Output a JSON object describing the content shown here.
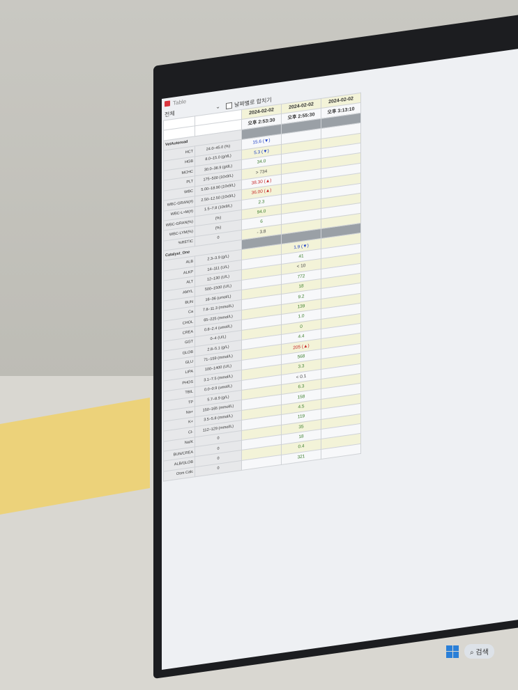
{
  "window": {
    "title": "Table"
  },
  "toolbar": {
    "filter_value": "전체",
    "merge_by_date_label": "날짜별로 합치기",
    "merge_by_date_checked": false
  },
  "columns": [
    {
      "date": "2024-02-02",
      "time": "오후 2:53:30"
    },
    {
      "date": "2024-02-02",
      "time": "오후 2:55:30"
    },
    {
      "date": "2024-02-02",
      "time": "오후 3:13:10"
    }
  ],
  "groups": [
    {
      "name": "VetAutoread",
      "column": 0,
      "rows": [
        {
          "test": "HCT",
          "range": "24.0–45.0 (%)",
          "value": "15.6 (▼)",
          "flag": "low"
        },
        {
          "test": "HGB",
          "range": "8.0–15.0 (g/dL)",
          "value": "5.3 (▼)",
          "flag": "low"
        },
        {
          "test": "MCHC",
          "range": "30.0–36.9 (g/dL)",
          "value": "34.0",
          "flag": "ok"
        },
        {
          "test": "PLT",
          "range": "175–500 (10x9/L)",
          "value": "> 734",
          "flag": "plain"
        },
        {
          "test": "WBC",
          "range": "5.00–18.90 (10x9/L)",
          "value": "38.30 (▲)",
          "flag": "high"
        },
        {
          "test": "WBC-GRAN(#)",
          "range": "2.50–12.50 (10x9/L)",
          "value": "36.00 (▲)",
          "flag": "high"
        },
        {
          "test": "WBC-L+M(#)",
          "range": "1.5–7.8 (10x9/L)",
          "value": "2.3",
          "flag": "ok"
        },
        {
          "test": "WBC-GRAN(%)",
          "range": "(%)",
          "value": "94.0",
          "flag": "ok"
        },
        {
          "test": "WBC-LYM(%)",
          "range": "(%)",
          "value": "6",
          "flag": "ok"
        },
        {
          "test": "%RETIC",
          "range": "0",
          "value": "- 3.8",
          "flag": "plain"
        }
      ]
    },
    {
      "name": "Catalyst_One",
      "column": 1,
      "rows": [
        {
          "test": "ALB",
          "range": "2.3–3.9 (g/L)",
          "value": "1.9 (▼)",
          "flag": "low"
        },
        {
          "test": "ALKP",
          "range": "14–111 (U/L)",
          "value": "41",
          "flag": "ok"
        },
        {
          "test": "ALT",
          "range": "12–130 (U/L)",
          "value": "< 10",
          "flag": "plain"
        },
        {
          "test": "AMYL",
          "range": "500–1500 (U/L)",
          "value": "772",
          "flag": "ok"
        },
        {
          "test": "BUN",
          "range": "16–36 (umol/L)",
          "value": "18",
          "flag": "ok"
        },
        {
          "test": "Ca",
          "range": "7.8–11.3 (mmol/L)",
          "value": "9.2",
          "flag": "ok"
        },
        {
          "test": "CHOL",
          "range": "65–225 (mmol/L)",
          "value": "139",
          "flag": "ok"
        },
        {
          "test": "CREA",
          "range": "0.8–2.4 (umol/L)",
          "value": "1.0",
          "flag": "ok"
        },
        {
          "test": "GGT",
          "range": "0–4 (U/L)",
          "value": "0",
          "flag": "ok"
        },
        {
          "test": "GLOB",
          "range": "2.8–5.1 (g/L)",
          "value": "4.4",
          "flag": "ok"
        },
        {
          "test": "GLU",
          "range": "71–159 (mmol/L)",
          "value": "205 (▲)",
          "flag": "high"
        },
        {
          "test": "LIPA",
          "range": "100–1400 (U/L)",
          "value": "568",
          "flag": "ok"
        },
        {
          "test": "PHOS",
          "range": "3.1–7.5 (mmol/L)",
          "value": "3.3",
          "flag": "ok"
        },
        {
          "test": "TBIL",
          "range": "0.0–0.9 (umol/L)",
          "value": "< 0.1",
          "flag": "plain"
        },
        {
          "test": "TP",
          "range": "5.7–8.9 (g/L)",
          "value": "6.3",
          "flag": "ok"
        },
        {
          "test": "Na+",
          "range": "150–165 (mmol/L)",
          "value": "158",
          "flag": "ok"
        },
        {
          "test": "K+",
          "range": "3.5–5.8 (mmol/L)",
          "value": "4.5",
          "flag": "ok"
        },
        {
          "test": "Cl-",
          "range": "112–129 (mmol/L)",
          "value": "119",
          "flag": "ok"
        },
        {
          "test": "Na/K",
          "range": "0",
          "value": "35",
          "flag": "ok"
        },
        {
          "test": "BUN/CREA",
          "range": "0",
          "value": "18",
          "flag": "ok"
        },
        {
          "test": "ALB/GLOB",
          "range": "0",
          "value": "0.4",
          "flag": "ok"
        },
        {
          "test": "Osm Calc",
          "range": "0",
          "value": "321",
          "flag": "ok"
        }
      ]
    }
  ],
  "taskbar": {
    "search_label": "검색"
  },
  "colors": {
    "low": "#1d3fc4",
    "high": "#c62828",
    "normal": "#3a7d2b",
    "row_highlight": "#f3f3d8",
    "group_header": "#9aa0a6"
  }
}
